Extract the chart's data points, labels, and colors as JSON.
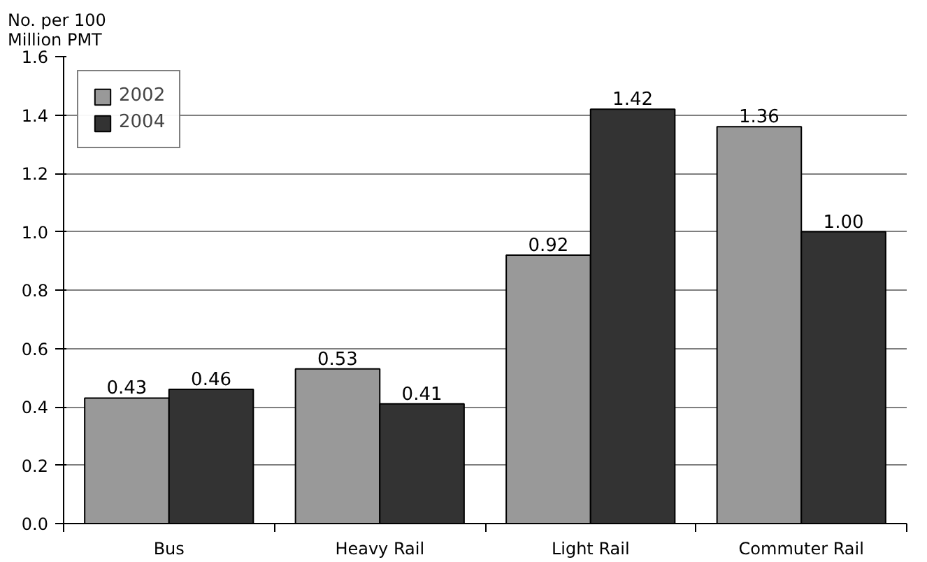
{
  "chart_data": {
    "type": "bar",
    "ylabel": "No. per 100\nMillion PMT",
    "categories": [
      "Bus",
      "Heavy Rail",
      "Light Rail",
      "Commuter Rail"
    ],
    "series": [
      {
        "name": "2002",
        "color": "#999999",
        "values": [
          0.43,
          0.53,
          0.92,
          1.36
        ],
        "value_labels": [
          "0.43",
          "0.53",
          "0.92",
          "1.36"
        ]
      },
      {
        "name": "2004",
        "color": "#333333",
        "values": [
          0.46,
          0.41,
          1.42,
          1.0
        ],
        "value_labels": [
          "0.46",
          "0.41",
          "1.42",
          "1.00"
        ]
      }
    ],
    "ylim": [
      0,
      1.6
    ],
    "yticks": [
      {
        "value": 0,
        "label": "0.0"
      },
      {
        "value": 0.2,
        "label": "0.2"
      },
      {
        "value": 0.4,
        "label": "0.4"
      },
      {
        "value": 0.6,
        "label": "0.6"
      },
      {
        "value": 0.8,
        "label": "0.8"
      },
      {
        "value": 1.0,
        "label": "1.0"
      },
      {
        "value": 1.2,
        "label": "1.2"
      },
      {
        "value": 1.4,
        "label": "1.4"
      },
      {
        "value": 1.6,
        "label": "1.6"
      }
    ],
    "grid": "y",
    "legend": "top left"
  }
}
